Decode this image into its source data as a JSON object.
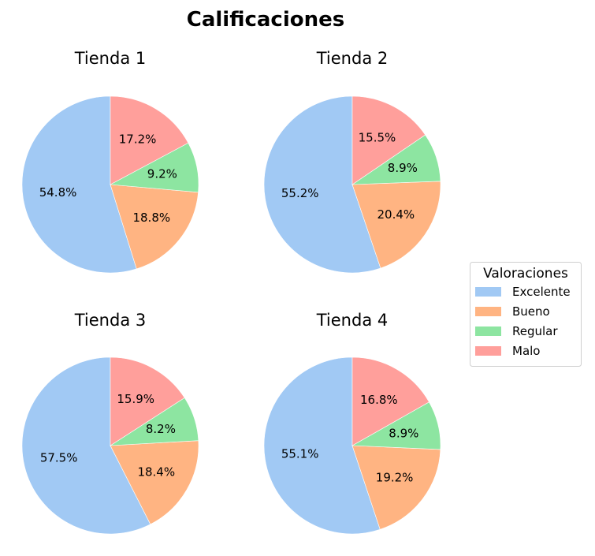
{
  "chart_data": {
    "type": "pie",
    "title": "Calificaciones",
    "legend": {
      "title": "Valoraciones",
      "placement": "center-right",
      "entries": [
        "Excelente",
        "Bueno",
        "Regular",
        "Malo"
      ]
    },
    "colors": [
      "#a1c9f4",
      "#ffb482",
      "#8de5a1",
      "#ff9f9b"
    ],
    "start_angle_deg": 90,
    "direction": "counterclockwise",
    "charts": [
      {
        "title": "Tienda 1",
        "values": [
          54.8,
          18.8,
          9.2,
          17.2
        ],
        "labels": [
          "54.8%",
          "18.8%",
          "9.2%",
          "17.2%"
        ]
      },
      {
        "title": "Tienda 2",
        "values": [
          55.2,
          20.4,
          8.9,
          15.5
        ],
        "labels": [
          "55.2%",
          "20.4%",
          "8.9%",
          "15.5%"
        ]
      },
      {
        "title": "Tienda 3",
        "values": [
          57.5,
          18.4,
          8.2,
          15.9
        ],
        "labels": [
          "57.5%",
          "18.4%",
          "8.2%",
          "15.9%"
        ]
      },
      {
        "title": "Tienda 4",
        "values": [
          55.1,
          19.2,
          8.9,
          16.8
        ],
        "labels": [
          "55.1%",
          "19.2%",
          "8.9%",
          "16.8%"
        ]
      }
    ]
  }
}
